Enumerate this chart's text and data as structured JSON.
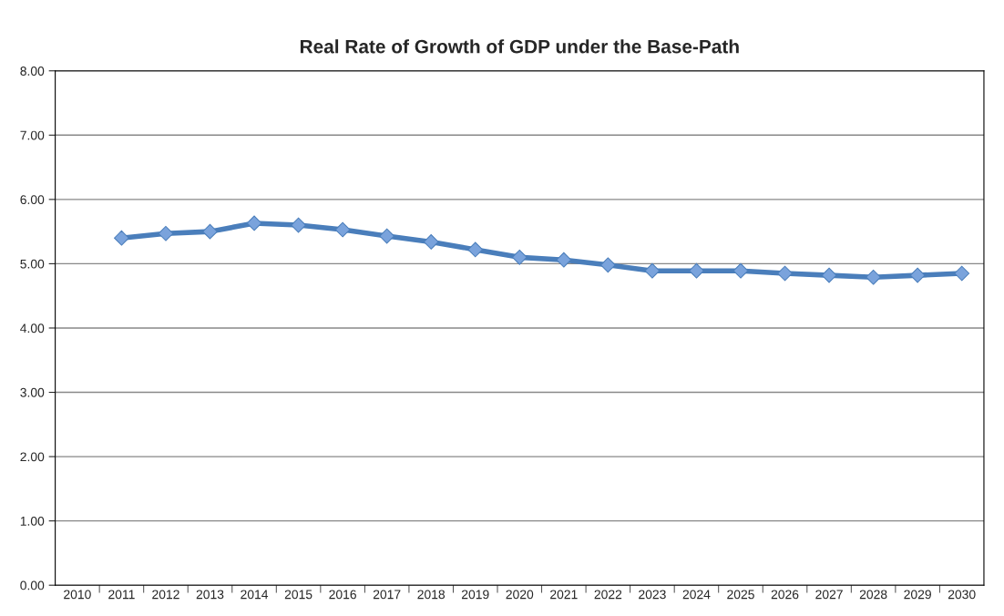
{
  "chart_data": {
    "type": "line",
    "title": "Real Rate of Growth of GDP under the Base-Path",
    "categories": [
      "2010",
      "2011",
      "2012",
      "2013",
      "2014",
      "2015",
      "2016",
      "2017",
      "2018",
      "2019",
      "2020",
      "2021",
      "2022",
      "2023",
      "2024",
      "2025",
      "2026",
      "2027",
      "2028",
      "2029",
      "2030"
    ],
    "series": [
      {
        "color": "#4a7ebb",
        "values": [
          null,
          5.4,
          5.47,
          5.5,
          5.63,
          5.6,
          5.53,
          5.43,
          5.34,
          5.22,
          5.1,
          5.06,
          4.98,
          4.89,
          4.89,
          4.89,
          4.85,
          4.82,
          4.79,
          4.82,
          4.85
        ]
      }
    ],
    "ylim": [
      0,
      8
    ],
    "yticks": [
      {
        "value": 0,
        "label": "0.00"
      },
      {
        "value": 1,
        "label": "1.00"
      },
      {
        "value": 2,
        "label": "2.00"
      },
      {
        "value": 3,
        "label": "3.00"
      },
      {
        "value": 4,
        "label": "4.00"
      },
      {
        "value": 5,
        "label": "5.00"
      },
      {
        "value": 6,
        "label": "6.00"
      },
      {
        "value": 7,
        "label": "7.00"
      },
      {
        "value": 8,
        "label": "8.00"
      }
    ],
    "grid": "y",
    "marker": "diamond",
    "line_style": "solid"
  }
}
